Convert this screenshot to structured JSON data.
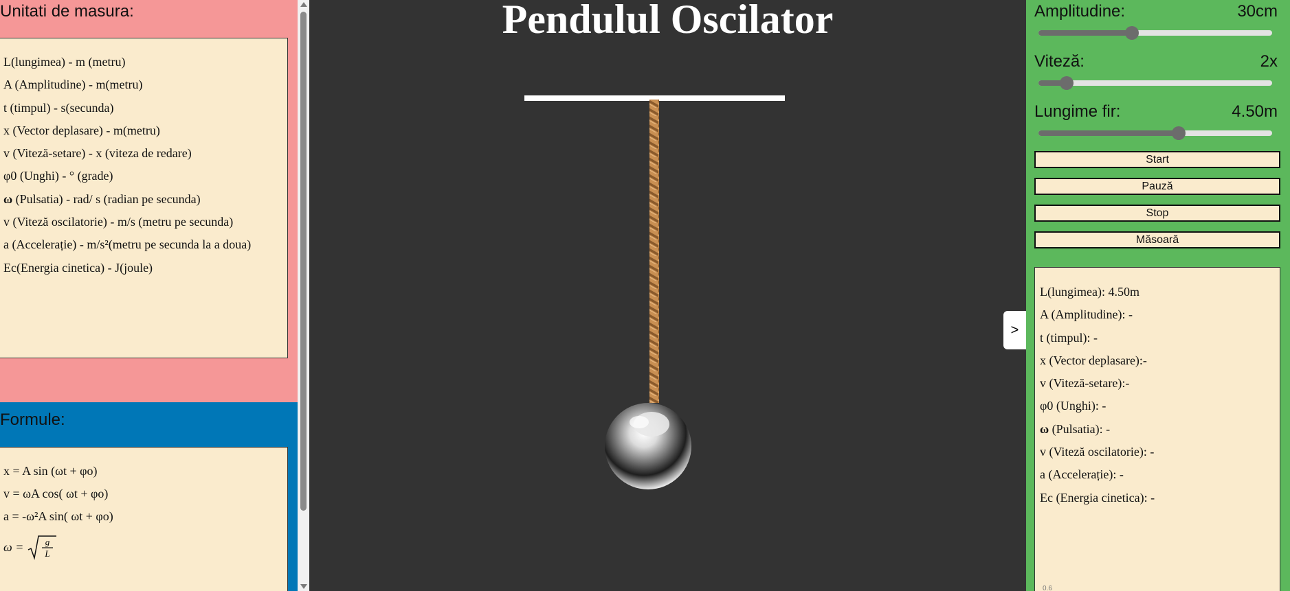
{
  "units": {
    "heading": "Unitati de masura:",
    "items": [
      "L(lungimea) - m (metru)",
      "A (Amplitudine) - m(metru)",
      "t (timpul) - s(secunda)",
      "x (Vector deplasare) - m(metru)",
      "v (Viteză-setare) - x (viteza de redare)",
      "φ0 (Unghi) - ° (grade)",
      "(Pulsatia) - rad/ s (radian pe secunda)",
      "v (Viteză oscilatorie) - m/s (metru pe secunda)",
      "a (Accelerație) - m/s²(metru pe secunda la a doua)",
      "Ec(Energia cinetica) - J(joule)"
    ],
    "omega_symbol": "ω"
  },
  "formulas": {
    "heading": "Formule:",
    "items": [
      "x = A sin (ωt + φo)",
      "v = ωA cos( ωt + φo)",
      "a = -ω²A sin( ωt + φo)"
    ],
    "omega_lhs": "ω =",
    "omega_num": "g",
    "omega_den": "L"
  },
  "title": "Pendulul Oscilator",
  "toggle_label": ">",
  "controls": {
    "amplitude": {
      "label": "Amplitudine:",
      "value": "30cm",
      "level": 0.4
    },
    "speed": {
      "label": "Viteză:",
      "value": "2x",
      "level": 0.12
    },
    "length": {
      "label": "Lungime fir:",
      "value": "4.50m",
      "level": 0.6
    }
  },
  "buttons": {
    "start": "Start",
    "pause": "Pauză",
    "stop": "Stop",
    "measure": "Măsoară"
  },
  "results": {
    "items": [
      "L(lungimea): 4.50m",
      "A (Amplitudine): -",
      "t (timpul): -",
      "x (Vector deplasare):-",
      "v (Viteză-setare):-",
      "φ0 (Unghi): -",
      "(Pulsatia): -",
      "v (Viteză oscilatorie): -",
      "a (Accelerație): -",
      "Ec (Energia cinetica): -"
    ],
    "omega_symbol": "ω",
    "chart_tick": "0.6"
  },
  "colors": {
    "units_bg": "#f59797",
    "formulas_bg": "#0077b7",
    "canvas_bg": "#333333",
    "controls_bg": "#5cb85c",
    "box_bg": "#faebcd",
    "rope": "#c98f52"
  }
}
